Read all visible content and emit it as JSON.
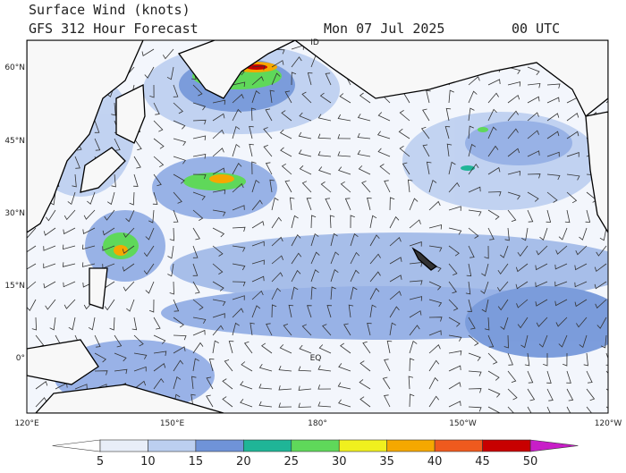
{
  "header": {
    "title": "Surface Wind (knots)",
    "subtitle": "GFS 312 Hour Forecast",
    "date": "Mon 07 Jul 2025",
    "time": "00 UTC"
  },
  "map": {
    "lat_labels": [
      "60°N",
      "45°N",
      "30°N",
      "15°N",
      "0°"
    ],
    "lon_labels": [
      "120°E",
      "150°E",
      "180°",
      "150°W",
      "120°W"
    ],
    "annotations": [
      "ID",
      "EQ"
    ]
  },
  "colorbar": {
    "ticks": [
      5,
      10,
      15,
      20,
      25,
      30,
      35,
      40,
      45,
      50
    ],
    "under_color": "#ffffff",
    "over_color": "#c81ec8",
    "colors": [
      "#e8eef8",
      "#bccff0",
      "#6f93d8",
      "#1fb597",
      "#5fd85a",
      "#f0f01e",
      "#f5a800",
      "#ef5a1e",
      "#c80000"
    ]
  }
}
